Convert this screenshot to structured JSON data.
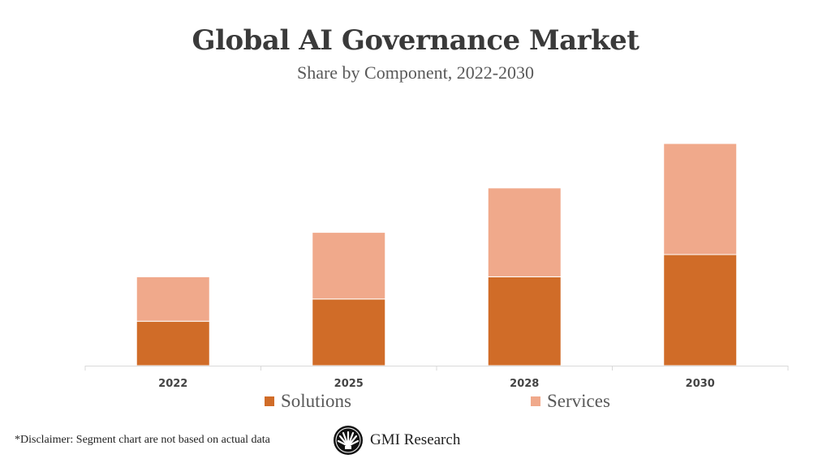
{
  "chart_data": {
    "type": "bar",
    "stacked": true,
    "title": "Global AI Governance Market",
    "subtitle": "Share by Component, 2022-2030",
    "categories": [
      "2022",
      "2025",
      "2028",
      "2030"
    ],
    "series": [
      {
        "name": "Solutions",
        "values": [
          2,
          3,
          4,
          5
        ],
        "color": "#D06C28"
      },
      {
        "name": "Services",
        "values": [
          2,
          3,
          4,
          5
        ],
        "color": "#F0A98B"
      }
    ],
    "xlabel": "",
    "ylabel": "",
    "y_axis_visible": false,
    "grid": false,
    "legend": "bottom"
  },
  "footer": {
    "disclaimer": "*Disclaimer:  Segment chart are not based on actual data",
    "logo_text": "GMI Research"
  }
}
